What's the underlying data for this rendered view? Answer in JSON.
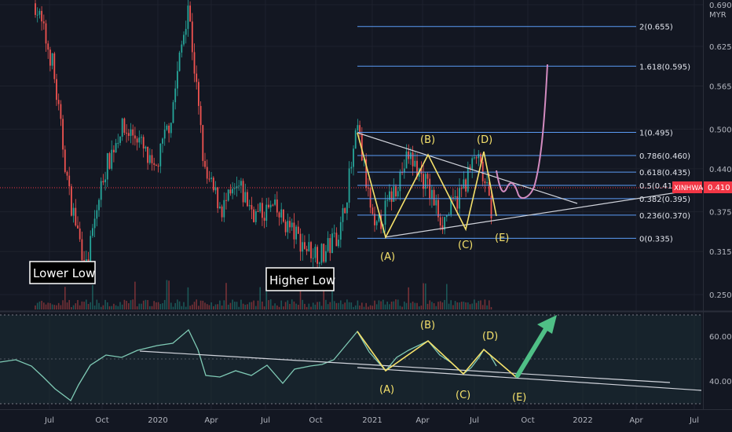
{
  "symbol": "XINHWA",
  "currency": "MYR",
  "last_price": "0.410",
  "chart_data": [
    {
      "type": "candlestick",
      "title": "",
      "y_axis": {
        "ticks": [
          "0.690",
          "0.625",
          "0.565",
          "0.500",
          "0.440",
          "0.375",
          "0.315",
          "0.250"
        ],
        "range": [
          0.22,
          0.69
        ]
      },
      "x_axis": {
        "ticks": [
          "Jul",
          "Oct",
          "2020",
          "Apr",
          "Jul",
          "Oct",
          "2021",
          "Apr",
          "Jul",
          "Oct",
          "2022",
          "Apr",
          "Jul"
        ]
      },
      "fib_levels": [
        {
          "ratio": "0",
          "value": 0.335,
          "label": "0(0.335)"
        },
        {
          "ratio": "0.236",
          "value": 0.37,
          "label": "0.236(0.370)"
        },
        {
          "ratio": "0.382",
          "value": 0.395,
          "label": "0.382(0.395)"
        },
        {
          "ratio": "0.5",
          "value": 0.415,
          "label": "0.5(0.415)"
        },
        {
          "ratio": "0.618",
          "value": 0.435,
          "label": "0.618(0.435)"
        },
        {
          "ratio": "0.786",
          "value": 0.46,
          "label": "0.786(0.460)"
        },
        {
          "ratio": "1",
          "value": 0.495,
          "label": "1(0.495)"
        },
        {
          "ratio": "1.618",
          "value": 0.595,
          "label": "1.618(0.595)"
        },
        {
          "ratio": "2",
          "value": 0.655,
          "label": "2(0.655)"
        }
      ],
      "price_path": [
        {
          "x": "2019-05",
          "y": 0.69
        },
        {
          "x": "2019-06",
          "y": 0.6
        },
        {
          "x": "2019-07",
          "y": 0.4
        },
        {
          "x": "2019-08",
          "y": 0.29
        },
        {
          "x": "2019-09",
          "y": 0.43
        },
        {
          "x": "2019-10",
          "y": 0.5
        },
        {
          "x": "2019-11",
          "y": 0.49
        },
        {
          "x": "2019-12",
          "y": 0.43
        },
        {
          "x": "2020-01",
          "y": 0.52
        },
        {
          "x": "2020-02",
          "y": 0.69
        },
        {
          "x": "2020-03",
          "y": 0.43
        },
        {
          "x": "2020-04",
          "y": 0.38
        },
        {
          "x": "2020-05",
          "y": 0.41
        },
        {
          "x": "2020-06",
          "y": 0.37
        },
        {
          "x": "2020-07",
          "y": 0.38
        },
        {
          "x": "2020-08",
          "y": 0.35
        },
        {
          "x": "2020-09",
          "y": 0.32
        },
        {
          "x": "2020-10",
          "y": 0.31
        },
        {
          "x": "2020-11",
          "y": 0.35
        },
        {
          "x": "2020-12",
          "y": 0.5
        },
        {
          "x": "2021-01",
          "y": 0.34
        },
        {
          "x": "2021-02",
          "y": 0.4
        },
        {
          "x": "2021-03",
          "y": 0.46
        },
        {
          "x": "2021-04",
          "y": 0.42
        },
        {
          "x": "2021-05",
          "y": 0.36
        },
        {
          "x": "2021-06",
          "y": 0.4
        },
        {
          "x": "2021-07",
          "y": 0.46
        },
        {
          "x": "2021-08",
          "y": 0.37
        }
      ],
      "waves": [
        {
          "label": "(A)",
          "y": 0.335
        },
        {
          "label": "(B)",
          "y": 0.46
        },
        {
          "label": "(C)",
          "y": 0.36
        },
        {
          "label": "(D)",
          "y": 0.46
        },
        {
          "label": "(E)",
          "y": 0.37
        }
      ],
      "annotations": [
        "Lower Low",
        "Higher Low"
      ]
    },
    {
      "type": "line",
      "title": "",
      "y_axis": {
        "ticks": [
          "60.00",
          "40.00"
        ],
        "range": [
          26,
          75
        ]
      },
      "waves": [
        "(A)",
        "(B)",
        "(C)",
        "(D)",
        "(E)"
      ]
    }
  ]
}
